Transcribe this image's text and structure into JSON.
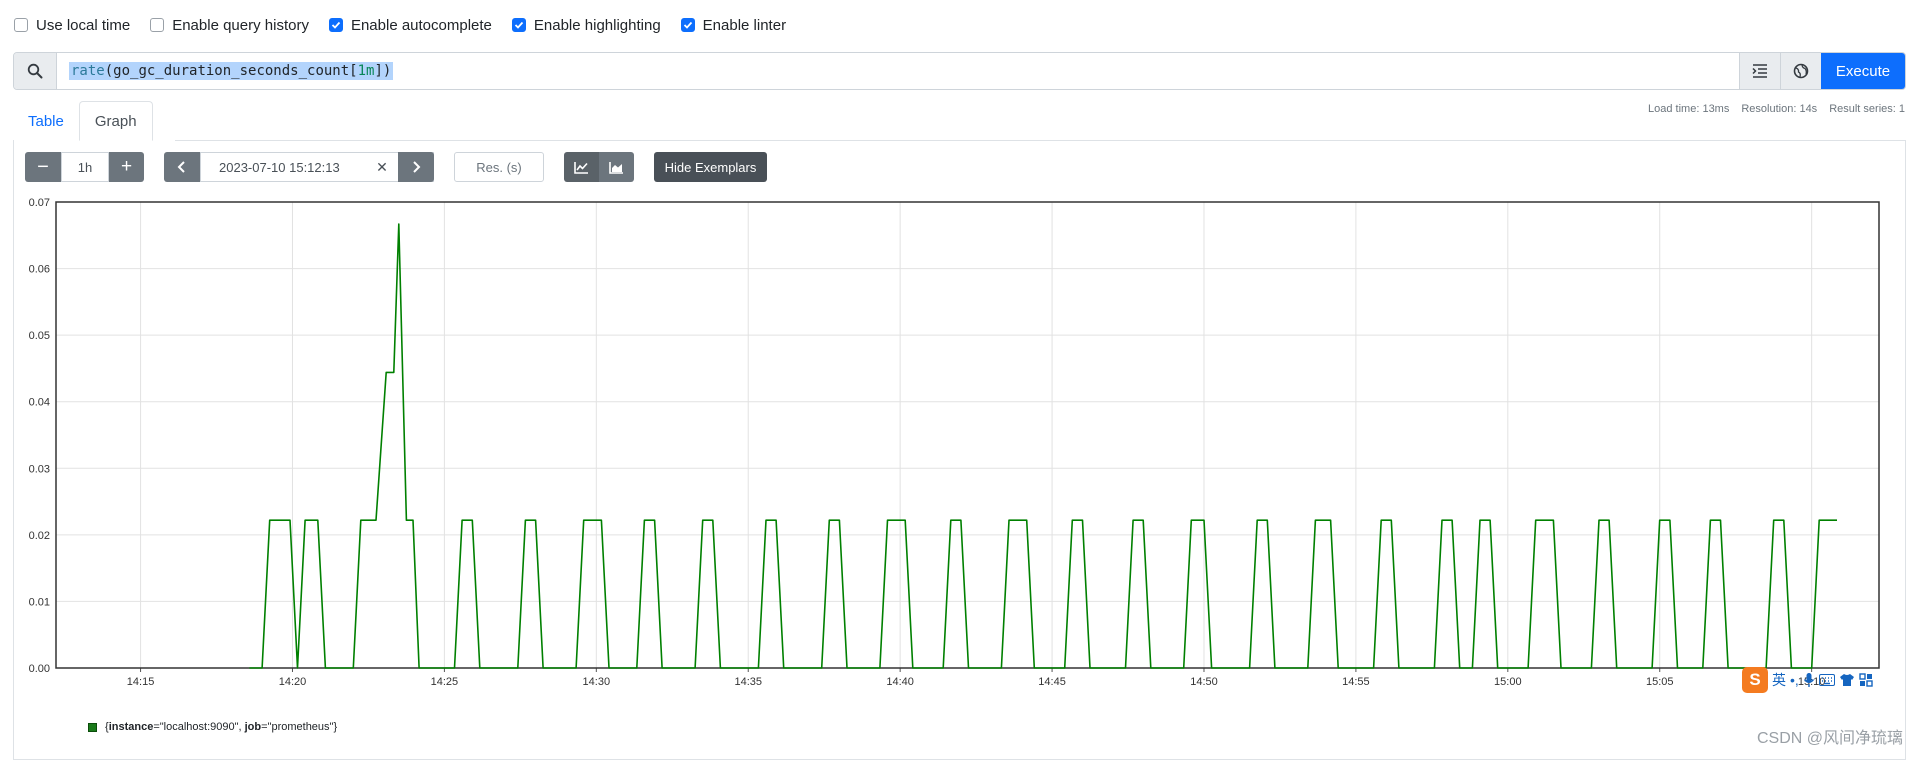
{
  "options": [
    {
      "label": "Use local time",
      "checked": false
    },
    {
      "label": "Enable query history",
      "checked": false
    },
    {
      "label": "Enable autocomplete",
      "checked": true
    },
    {
      "label": "Enable highlighting",
      "checked": true
    },
    {
      "label": "Enable linter",
      "checked": true
    }
  ],
  "query": {
    "fn": "rate",
    "metric": "go_gc_duration_seconds_count",
    "range": "1m",
    "execute_label": "Execute"
  },
  "tabs": {
    "table": "Table",
    "graph": "Graph"
  },
  "stats": {
    "load": "Load time: 13ms",
    "resolution": "Resolution: 14s",
    "series": "Result series: 1"
  },
  "controls": {
    "minus": "−",
    "range": "1h",
    "plus": "+",
    "end_time": "2023-07-10 15:12:13",
    "clear": "✕",
    "res_placeholder": "Res. (s)",
    "hide_exemplars": "Hide Exemplars"
  },
  "legend": {
    "open": "{",
    "k1": "instance",
    "v1": "=\"localhost:9090\", ",
    "k2": "job",
    "v2": "=\"prometheus\"}"
  },
  "watermark": "CSDN @风间净琉璃",
  "ime": {
    "logo": "S",
    "lang": "英"
  },
  "icons": [
    "search-icon",
    "format-icon",
    "metrics-explorer-icon",
    "line-chart-icon",
    "stacked-chart-icon",
    "chevron-left-icon",
    "chevron-right-icon"
  ],
  "colors": {
    "accent": "#0d6efd",
    "series": "#008000"
  },
  "chart_data": {
    "type": "line",
    "title": "",
    "xlabel": "",
    "ylabel": "",
    "ylim": [
      0,
      0.07
    ],
    "yticks": [
      "0.00",
      "0.01",
      "0.02",
      "0.03",
      "0.04",
      "0.05",
      "0.06",
      "0.07"
    ],
    "xlim": [
      "14:12:13",
      "15:12:13"
    ],
    "xticks": [
      "14:15",
      "14:20",
      "14:25",
      "14:30",
      "14:35",
      "14:40",
      "14:45",
      "14:50",
      "14:55",
      "15:00",
      "15:05",
      "15:10"
    ],
    "grid": true,
    "series": [
      {
        "name": "{instance=\"localhost:9090\", job=\"prometheus\"}",
        "points": [
          [
            "14:18:35",
            0
          ],
          [
            "14:19:00",
            0
          ],
          [
            "14:19:15",
            0.0222
          ],
          [
            "14:19:55",
            0.0222
          ],
          [
            "14:20:10",
            0
          ],
          [
            "14:20:25",
            0.0222
          ],
          [
            "14:20:50",
            0.0222
          ],
          [
            "14:21:05",
            0
          ],
          [
            "14:22:00",
            0
          ],
          [
            "14:22:15",
            0.0222
          ],
          [
            "14:22:45",
            0.0222
          ],
          [
            "14:23:05",
            0.0444
          ],
          [
            "14:23:20",
            0.0444
          ],
          [
            "14:23:30",
            0.0667
          ],
          [
            "14:23:45",
            0.0222
          ],
          [
            "14:23:58",
            0.0222
          ],
          [
            "14:24:10",
            0
          ],
          [
            "14:25:20",
            0
          ],
          [
            "14:25:35",
            0.0222
          ],
          [
            "14:25:55",
            0.0222
          ],
          [
            "14:26:10",
            0
          ],
          [
            "14:27:25",
            0
          ],
          [
            "14:27:40",
            0.0222
          ],
          [
            "14:28:00",
            0.0222
          ],
          [
            "14:28:15",
            0
          ],
          [
            "14:29:20",
            0
          ],
          [
            "14:29:35",
            0.0222
          ],
          [
            "14:30:10",
            0.0222
          ],
          [
            "14:30:25",
            0
          ],
          [
            "14:31:20",
            0
          ],
          [
            "14:31:35",
            0.0222
          ],
          [
            "14:31:55",
            0.0222
          ],
          [
            "14:32:10",
            0
          ],
          [
            "14:33:15",
            0
          ],
          [
            "14:33:30",
            0.0222
          ],
          [
            "14:33:50",
            0.0222
          ],
          [
            "14:34:05",
            0
          ],
          [
            "14:35:20",
            0
          ],
          [
            "14:35:35",
            0.0222
          ],
          [
            "14:35:55",
            0.0222
          ],
          [
            "14:36:10",
            0
          ],
          [
            "14:37:25",
            0
          ],
          [
            "14:37:40",
            0.0222
          ],
          [
            "14:38:00",
            0.0222
          ],
          [
            "14:38:15",
            0
          ],
          [
            "14:39:20",
            0
          ],
          [
            "14:39:35",
            0.0222
          ],
          [
            "14:40:10",
            0.0222
          ],
          [
            "14:40:25",
            0
          ],
          [
            "14:41:25",
            0
          ],
          [
            "14:41:40",
            0.0222
          ],
          [
            "14:42:00",
            0.0222
          ],
          [
            "14:42:15",
            0
          ],
          [
            "14:43:20",
            0
          ],
          [
            "14:43:35",
            0.0222
          ],
          [
            "14:44:10",
            0.0222
          ],
          [
            "14:44:25",
            0
          ],
          [
            "14:45:25",
            0
          ],
          [
            "14:45:40",
            0.0222
          ],
          [
            "14:46:00",
            0.0222
          ],
          [
            "14:46:15",
            0
          ],
          [
            "14:47:25",
            0
          ],
          [
            "14:47:40",
            0.0222
          ],
          [
            "14:48:00",
            0.0222
          ],
          [
            "14:48:15",
            0
          ],
          [
            "14:49:20",
            0
          ],
          [
            "14:49:35",
            0.0222
          ],
          [
            "14:50:00",
            0.0222
          ],
          [
            "14:50:15",
            0
          ],
          [
            "14:51:30",
            0
          ],
          [
            "14:51:45",
            0.0222
          ],
          [
            "14:52:05",
            0.0222
          ],
          [
            "14:52:20",
            0
          ],
          [
            "14:53:25",
            0
          ],
          [
            "14:53:40",
            0.0222
          ],
          [
            "14:54:10",
            0.0222
          ],
          [
            "14:54:25",
            0
          ],
          [
            "14:55:35",
            0
          ],
          [
            "14:55:50",
            0.0222
          ],
          [
            "14:56:10",
            0.0222
          ],
          [
            "14:56:25",
            0
          ],
          [
            "14:57:35",
            0
          ],
          [
            "14:57:50",
            0.0222
          ],
          [
            "14:58:10",
            0.0222
          ],
          [
            "14:58:25",
            0
          ],
          [
            "14:58:50",
            0
          ],
          [
            "14:59:05",
            0.0222
          ],
          [
            "14:59:25",
            0.0222
          ],
          [
            "14:59:40",
            0
          ],
          [
            "15:00:40",
            0
          ],
          [
            "15:00:55",
            0.0222
          ],
          [
            "15:01:30",
            0.0222
          ],
          [
            "15:01:45",
            0
          ],
          [
            "15:02:45",
            0
          ],
          [
            "15:03:00",
            0.0222
          ],
          [
            "15:03:20",
            0.0222
          ],
          [
            "15:03:35",
            0
          ],
          [
            "15:04:45",
            0
          ],
          [
            "15:05:00",
            0.0222
          ],
          [
            "15:05:20",
            0.0222
          ],
          [
            "15:05:35",
            0
          ],
          [
            "15:06:25",
            0
          ],
          [
            "15:06:40",
            0.0222
          ],
          [
            "15:07:00",
            0.0222
          ],
          [
            "15:07:15",
            0
          ],
          [
            "15:08:30",
            0
          ],
          [
            "15:08:45",
            0.0222
          ],
          [
            "15:09:05",
            0.0222
          ],
          [
            "15:09:20",
            0
          ],
          [
            "15:10:00",
            0
          ],
          [
            "15:10:15",
            0.0222
          ],
          [
            "15:10:50",
            0.0222
          ]
        ]
      }
    ]
  }
}
